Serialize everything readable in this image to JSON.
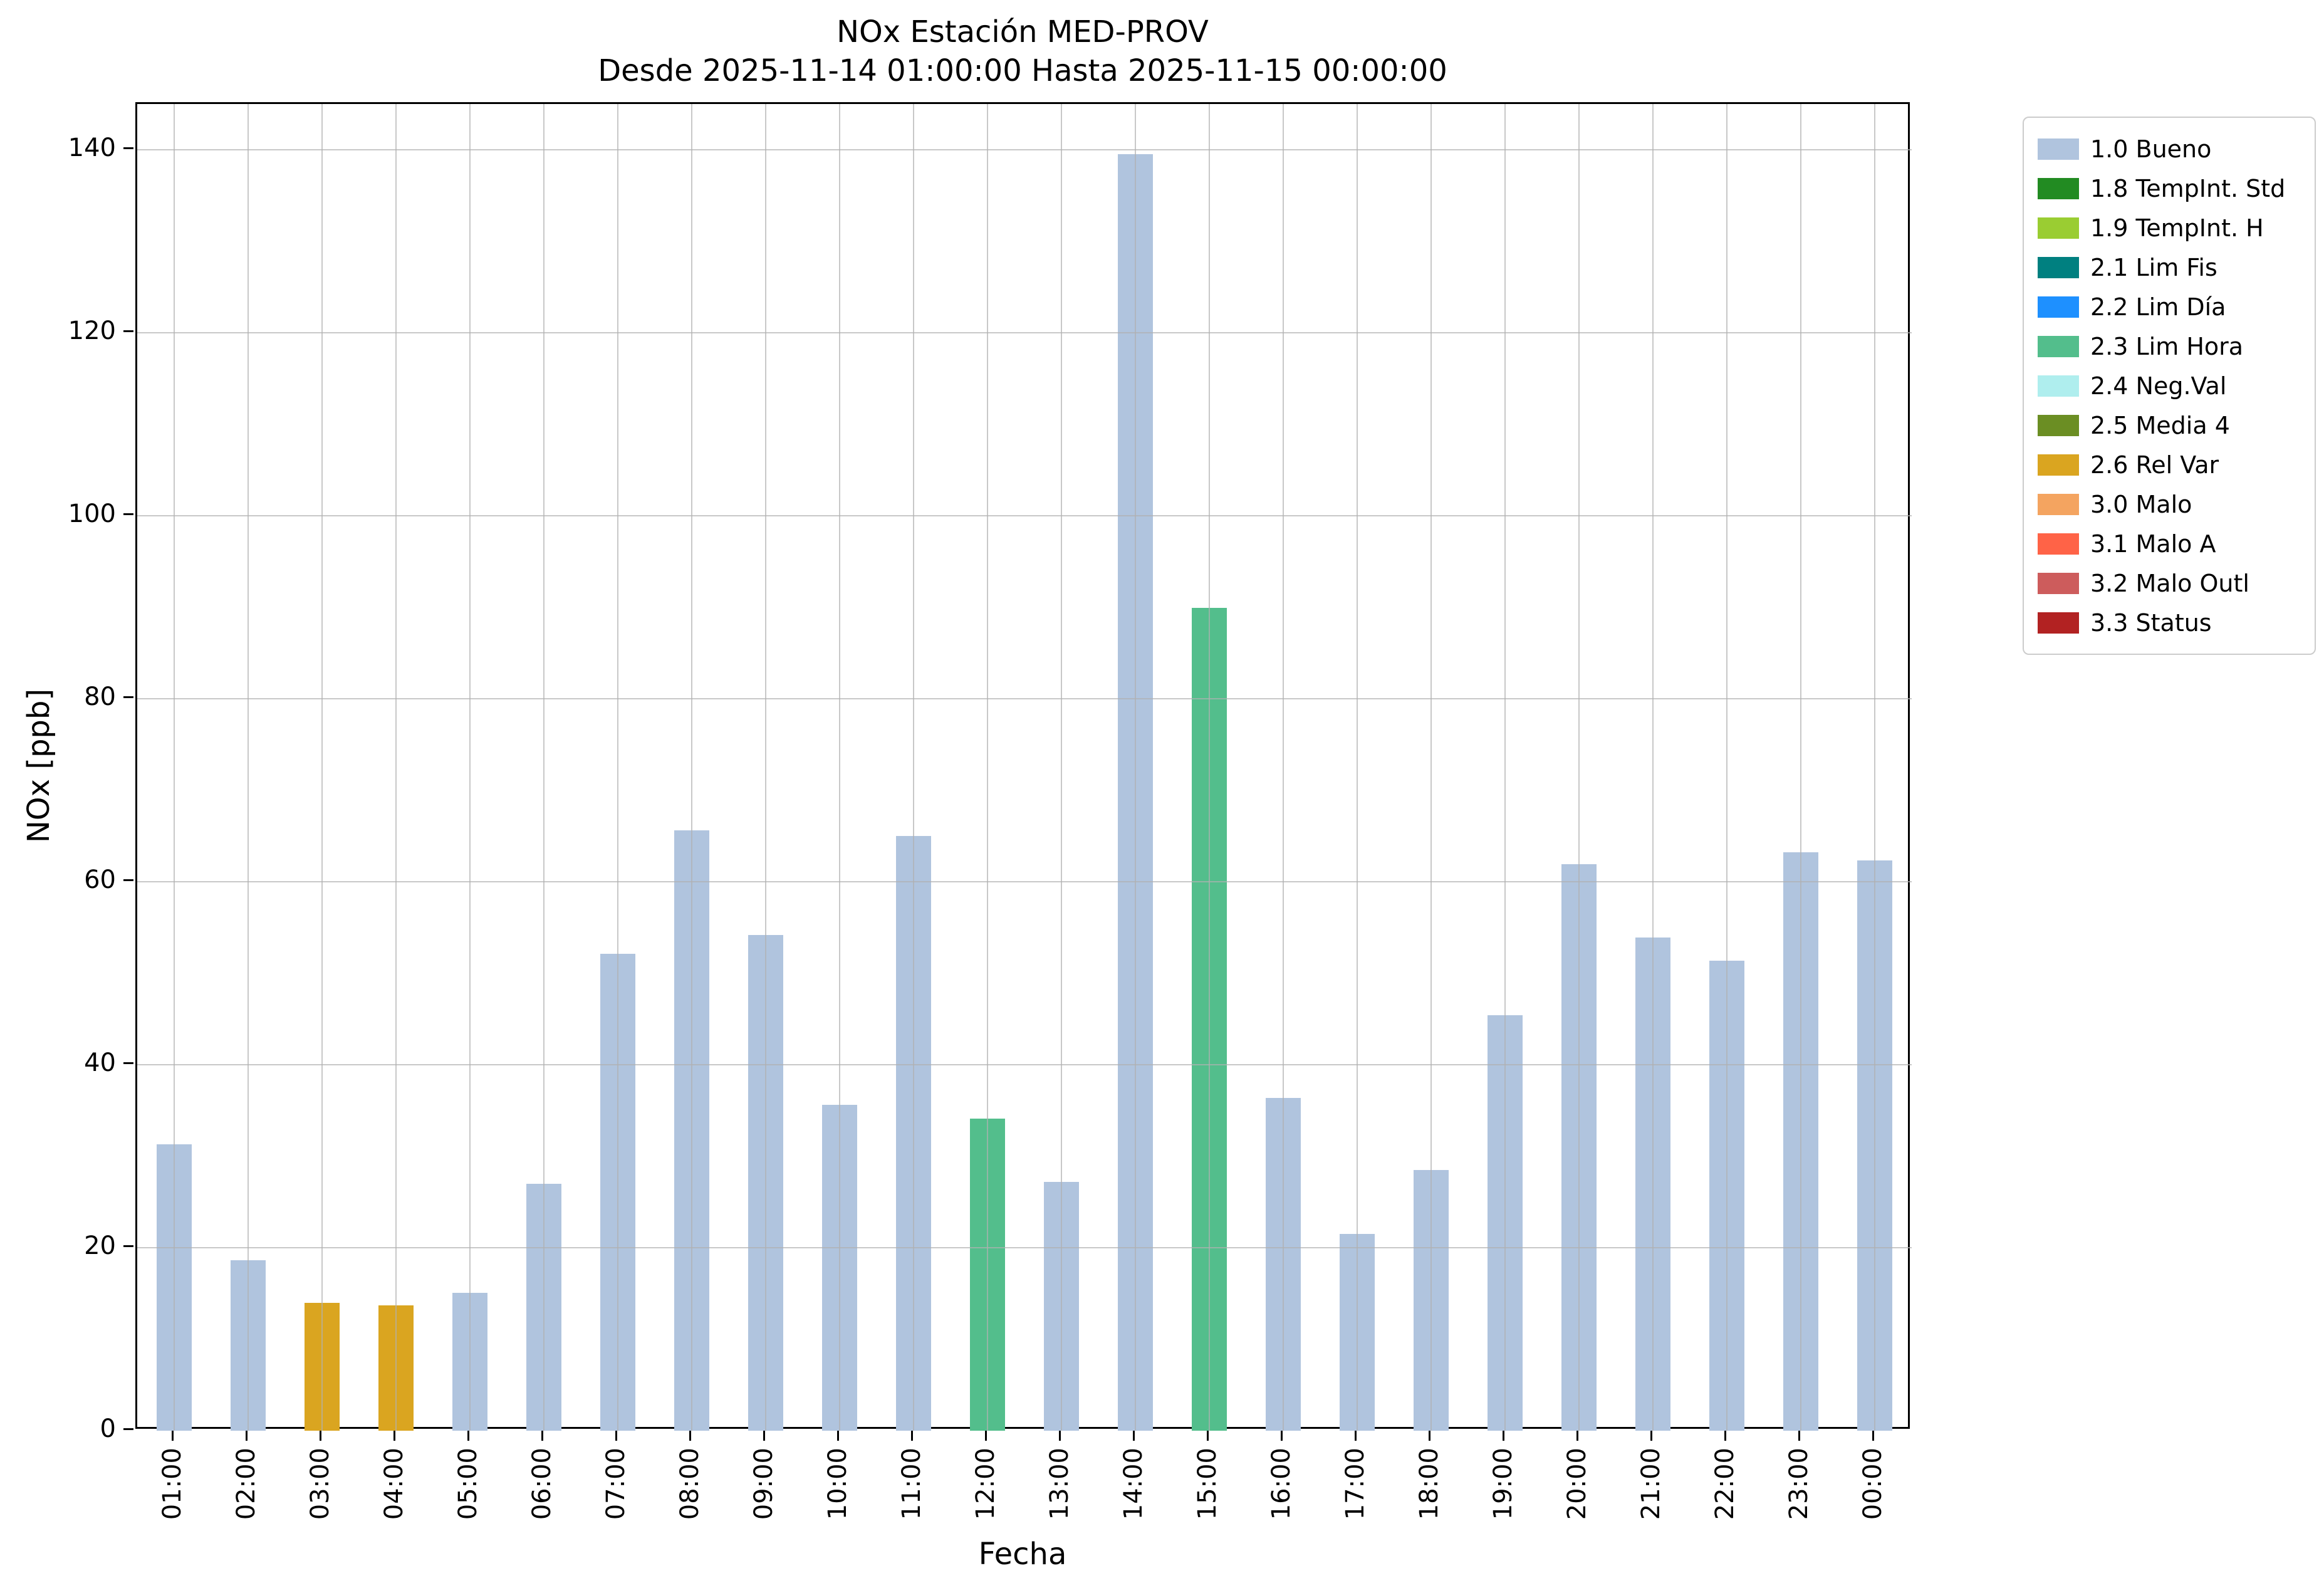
{
  "chart_data": {
    "type": "bar",
    "title": "NOx Estación MED-PROV",
    "subtitle": "Desde 2025-11-14 01:00:00 Hasta 2025-11-15 00:00:00",
    "xlabel": "Fecha",
    "ylabel": "NOx [ppb]",
    "ylim": [
      0,
      145
    ],
    "grid": true,
    "legend_position": "outside upper right",
    "y_ticks": [
      "0",
      "20",
      "40",
      "60",
      "80",
      "100",
      "120",
      "140"
    ],
    "categories": [
      "01:00",
      "02:00",
      "03:00",
      "04:00",
      "05:00",
      "06:00",
      "07:00",
      "08:00",
      "09:00",
      "10:00",
      "11:00",
      "12:00",
      "13:00",
      "14:00",
      "15:00",
      "16:00",
      "17:00",
      "18:00",
      "19:00",
      "20:00",
      "21:00",
      "22:00",
      "23:00",
      "00:00"
    ],
    "values": [
      31.3,
      18.6,
      14.0,
      13.7,
      15.1,
      27.0,
      52.1,
      65.6,
      54.2,
      35.6,
      65.0,
      34.1,
      27.2,
      139.5,
      89.9,
      36.4,
      21.5,
      28.5,
      45.4,
      61.9,
      53.9,
      51.4,
      63.2,
      62.3
    ],
    "bar_status": [
      "1.0 Bueno",
      "1.0 Bueno",
      "2.6 Rel Var",
      "2.6 Rel Var",
      "1.0 Bueno",
      "1.0 Bueno",
      "1.0 Bueno",
      "1.0 Bueno",
      "1.0 Bueno",
      "1.0 Bueno",
      "1.0 Bueno",
      "2.3 Lim Hora",
      "1.0 Bueno",
      "1.0 Bueno",
      "2.3 Lim Hora",
      "1.0 Bueno",
      "1.0 Bueno",
      "1.0 Bueno",
      "1.0 Bueno",
      "1.0 Bueno",
      "1.0 Bueno",
      "1.0 Bueno",
      "1.0 Bueno",
      "1.0 Bueno"
    ],
    "legend": [
      {
        "label": "1.0 Bueno",
        "color": "#b0c4de"
      },
      {
        "label": "1.8 TempInt. Std",
        "color": "#228b22"
      },
      {
        "label": "1.9 TempInt. H",
        "color": "#9acd32"
      },
      {
        "label": "2.1 Lim Fis",
        "color": "#008080"
      },
      {
        "label": "2.2 Lim Día",
        "color": "#1e90ff"
      },
      {
        "label": "2.3 Lim Hora",
        "color": "#53be8c"
      },
      {
        "label": "2.4 Neg.Val",
        "color": "#afeeee"
      },
      {
        "label": "2.5 Media 4",
        "color": "#6b8e23"
      },
      {
        "label": "2.6 Rel Var",
        "color": "#daa520"
      },
      {
        "label": "3.0 Malo",
        "color": "#f4a460"
      },
      {
        "label": "3.1 Malo A",
        "color": "#ff6347"
      },
      {
        "label": "3.2 Malo Outl",
        "color": "#cd5c5c"
      },
      {
        "label": "3.3 Status",
        "color": "#b22222"
      }
    ]
  }
}
